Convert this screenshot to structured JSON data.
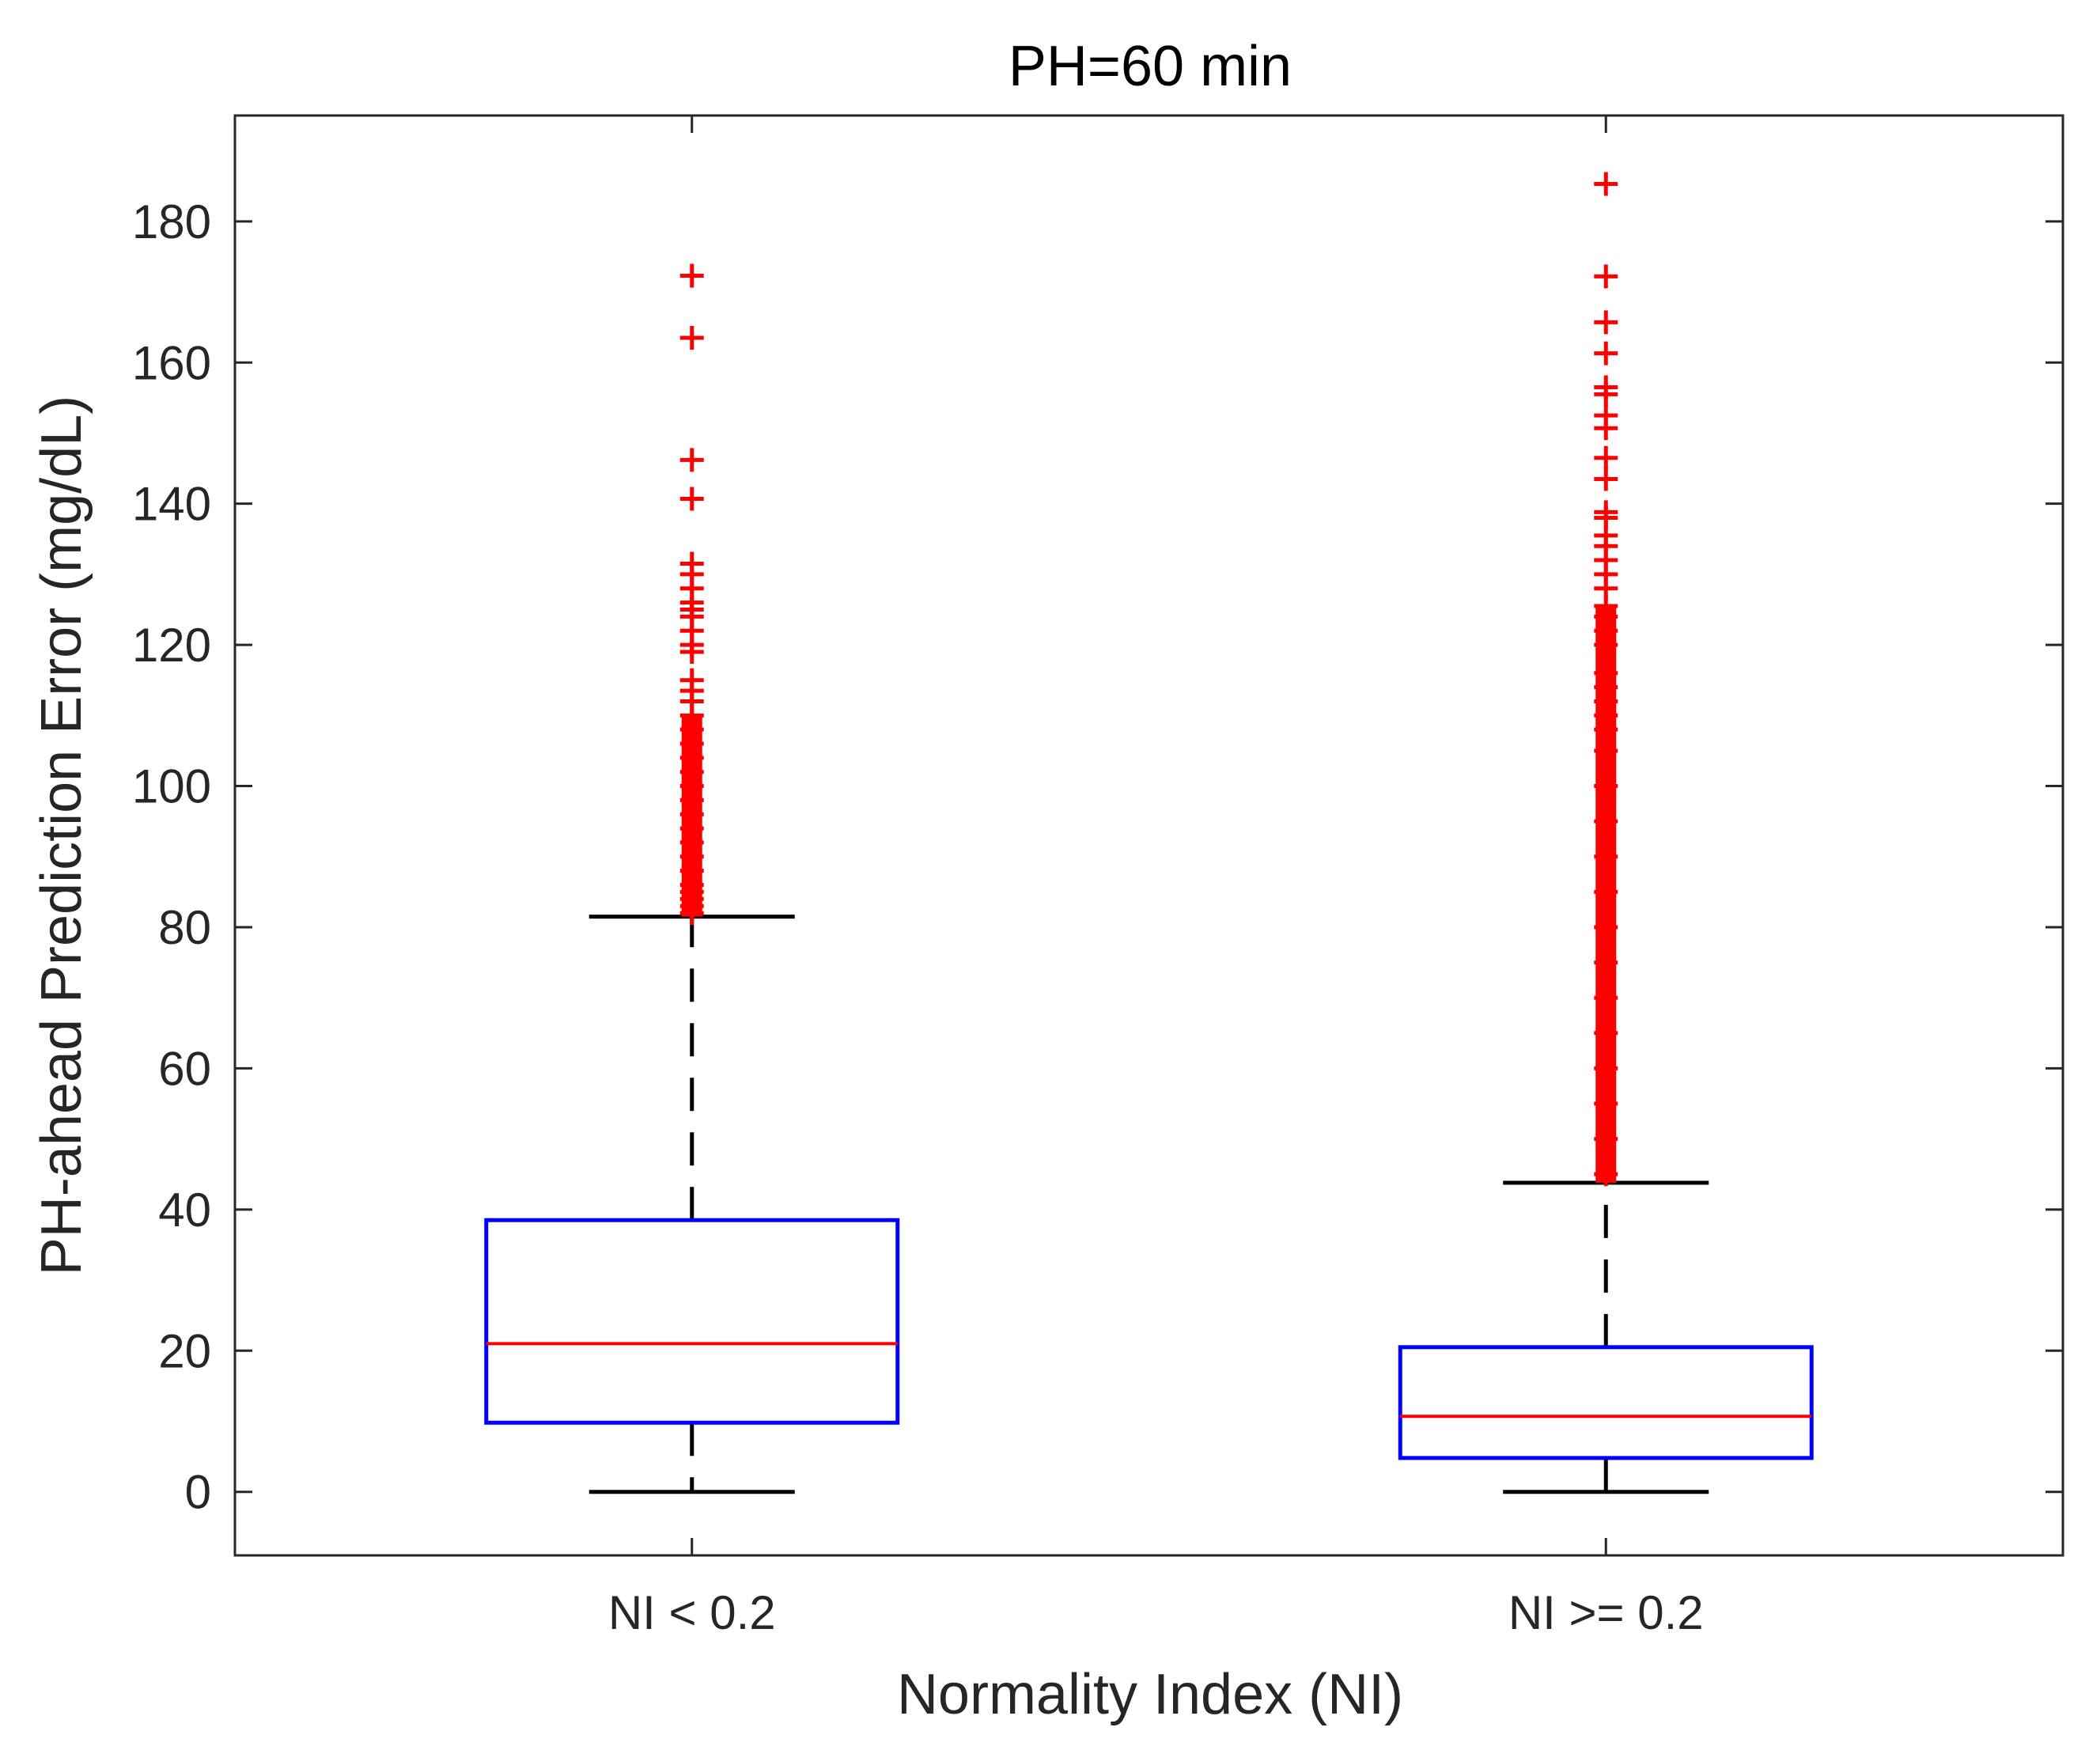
{
  "chart_data": {
    "type": "boxplot",
    "title": "PH=60 min",
    "xlabel": "Normality Index (NI)",
    "ylabel": "PH-ahead Prediction Error (mg/dL)",
    "ylim": [
      -9,
      195
    ],
    "yticks": [
      0,
      20,
      40,
      60,
      80,
      100,
      120,
      140,
      160,
      180
    ],
    "grid": false,
    "colors": {
      "box": "#0000ff",
      "median": "#ff0000",
      "whisker": "#000000",
      "outlier": "#ff0000",
      "axis": "#262626"
    },
    "categories": [
      "NI < 0.2",
      "NI >= 0.2"
    ],
    "series": [
      {
        "name": "NI < 0.2",
        "whisker_low": 0,
        "q1": 9.8,
        "median": 21,
        "q3": 38.5,
        "whisker_high": 81.5,
        "outlier_band": [
          81.5,
          110
        ],
        "outliers": [
          82,
          83,
          84,
          85,
          86,
          88,
          90,
          92,
          94,
          96,
          98,
          100,
          102,
          104,
          106,
          108,
          110,
          112,
          113.5,
          115,
          119,
          120,
          122,
          124,
          125,
          126,
          128,
          130,
          131.5,
          140.7,
          146.2,
          163.5,
          172.3
        ]
      },
      {
        "name": "NI >= 0.2",
        "whisker_low": 0,
        "q1": 4.8,
        "median": 10.7,
        "q3": 20.5,
        "whisker_high": 43.8,
        "outlier_band": [
          43.8,
          125.5
        ],
        "outliers": [
          45,
          50,
          55,
          60,
          65,
          70,
          75,
          80,
          85,
          90,
          95,
          100,
          105,
          108,
          110,
          112,
          114,
          116,
          120,
          122,
          124,
          125.5,
          128,
          130,
          132,
          134,
          135.5,
          138,
          138.8,
          143.5,
          146.5,
          150.7,
          152.5,
          155.5,
          156.5,
          161.3,
          165.7,
          172.2,
          185.3
        ]
      }
    ]
  }
}
